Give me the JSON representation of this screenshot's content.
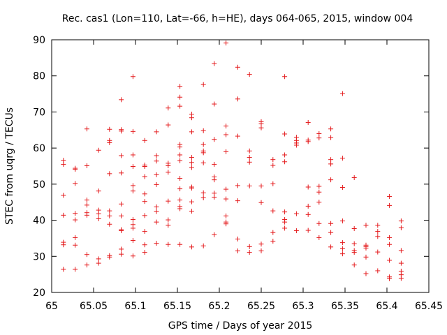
{
  "chart_data": {
    "type": "scatter",
    "title": "Rec. cas1 (Lon=110, Lat=-66, h=HE), days 064-065, 2015, window 004",
    "xlabel": "GPS time / Days of year 2015",
    "ylabel": "STEC from uqrg / TECUs",
    "xlim": [
      65,
      65.45
    ],
    "ylim": [
      20,
      90
    ],
    "xticks": [
      "65",
      "65.05",
      "65.1",
      "65.15",
      "65.2",
      "65.25",
      "65.3",
      "65.35",
      "65.4",
      "65.45"
    ],
    "yticks": [
      "20",
      "30",
      "40",
      "50",
      "60",
      "70",
      "80",
      "90"
    ],
    "marker": "plus",
    "marker_color": "#e41a1c",
    "series": [
      {
        "name": "STEC",
        "points": [
          [
            65.014,
            26.4
          ],
          [
            65.014,
            33.2
          ],
          [
            65.014,
            33.9
          ],
          [
            65.014,
            41.4
          ],
          [
            65.014,
            46.9
          ],
          [
            65.014,
            55.5
          ],
          [
            65.014,
            56.6
          ],
          [
            65.028,
            26.4
          ],
          [
            65.028,
            33.1
          ],
          [
            65.028,
            35.2
          ],
          [
            65.028,
            40.1
          ],
          [
            65.028,
            41.9
          ],
          [
            65.028,
            50.2
          ],
          [
            65.028,
            54.1
          ],
          [
            65.028,
            54.4
          ],
          [
            65.042,
            27.6
          ],
          [
            65.042,
            30.5
          ],
          [
            65.042,
            41.4
          ],
          [
            65.042,
            42.1
          ],
          [
            65.042,
            44.2
          ],
          [
            65.042,
            45.6
          ],
          [
            65.042,
            55.1
          ],
          [
            65.042,
            65.3
          ],
          [
            65.056,
            28.1
          ],
          [
            65.056,
            29.3
          ],
          [
            65.056,
            40.4
          ],
          [
            65.056,
            41.8
          ],
          [
            65.056,
            42.8
          ],
          [
            65.056,
            48.1
          ],
          [
            65.056,
            59.4
          ],
          [
            65.069,
            29.8
          ],
          [
            65.069,
            30.2
          ],
          [
            65.069,
            38.9
          ],
          [
            65.069,
            41.2
          ],
          [
            65.069,
            42.6
          ],
          [
            65.069,
            52.9
          ],
          [
            65.069,
            61.5
          ],
          [
            65.069,
            62.1
          ],
          [
            65.069,
            65.2
          ],
          [
            65.083,
            30.6
          ],
          [
            65.083,
            32.0
          ],
          [
            65.083,
            37.1
          ],
          [
            65.083,
            37.4
          ],
          [
            65.083,
            41.2
          ],
          [
            65.083,
            44.5
          ],
          [
            65.083,
            53.1
          ],
          [
            65.083,
            57.9
          ],
          [
            65.083,
            64.7
          ],
          [
            65.083,
            65.1
          ],
          [
            65.083,
            73.4
          ],
          [
            65.097,
            30.1
          ],
          [
            65.097,
            34.4
          ],
          [
            65.097,
            37.8
          ],
          [
            65.097,
            38.8
          ],
          [
            65.097,
            40.2
          ],
          [
            65.097,
            48.1
          ],
          [
            65.097,
            49.6
          ],
          [
            65.097,
            54.9
          ],
          [
            65.097,
            58.1
          ],
          [
            65.097,
            64.6
          ],
          [
            65.097,
            79.8
          ],
          [
            65.111,
            31.1
          ],
          [
            65.111,
            33.2
          ],
          [
            65.111,
            36.9
          ],
          [
            65.111,
            41.3
          ],
          [
            65.111,
            45.2
          ],
          [
            65.111,
            47.3
          ],
          [
            65.111,
            52.1
          ],
          [
            65.111,
            54.9
          ],
          [
            65.111,
            55.3
          ],
          [
            65.111,
            62.1
          ],
          [
            65.125,
            33.6
          ],
          [
            65.125,
            39.5
          ],
          [
            65.125,
            42.4
          ],
          [
            65.125,
            43.7
          ],
          [
            65.125,
            49.9
          ],
          [
            65.125,
            52.6
          ],
          [
            65.125,
            56.4
          ],
          [
            65.125,
            57.9
          ],
          [
            65.125,
            64.5
          ],
          [
            65.139,
            33.3
          ],
          [
            65.139,
            38.6
          ],
          [
            65.139,
            40.1
          ],
          [
            65.139,
            45.3
          ],
          [
            65.139,
            53.3
          ],
          [
            65.139,
            55.1
          ],
          [
            65.139,
            55.8
          ],
          [
            65.139,
            66.4
          ],
          [
            65.139,
            71.1
          ],
          [
            65.153,
            33.3
          ],
          [
            65.153,
            43.2
          ],
          [
            65.153,
            43.8
          ],
          [
            65.153,
            45.6
          ],
          [
            65.153,
            48.7
          ],
          [
            65.153,
            51.6
          ],
          [
            65.153,
            56.5
          ],
          [
            65.153,
            58.1
          ],
          [
            65.153,
            60.3
          ],
          [
            65.153,
            61.0
          ],
          [
            65.153,
            71.6
          ],
          [
            65.153,
            74.1
          ],
          [
            65.153,
            77.1
          ],
          [
            65.167,
            32.6
          ],
          [
            65.167,
            42.5
          ],
          [
            65.167,
            45.1
          ],
          [
            65.167,
            48.9
          ],
          [
            65.167,
            49.2
          ],
          [
            65.167,
            54.6
          ],
          [
            65.167,
            56.0
          ],
          [
            65.167,
            57.4
          ],
          [
            65.167,
            64.5
          ],
          [
            65.167,
            68.4
          ],
          [
            65.167,
            69.4
          ],
          [
            65.181,
            32.9
          ],
          [
            65.181,
            46.2
          ],
          [
            65.181,
            47.6
          ],
          [
            65.181,
            55.9
          ],
          [
            65.181,
            58.7
          ],
          [
            65.181,
            59.2
          ],
          [
            65.181,
            61.0
          ],
          [
            65.181,
            64.8
          ],
          [
            65.181,
            77.6
          ],
          [
            65.194,
            36.0
          ],
          [
            65.194,
            46.4
          ],
          [
            65.194,
            47.5
          ],
          [
            65.194,
            51.2
          ],
          [
            65.194,
            52.0
          ],
          [
            65.194,
            55.5
          ],
          [
            65.194,
            62.4
          ],
          [
            65.194,
            72.2
          ],
          [
            65.194,
            83.4
          ],
          [
            65.208,
            39.0
          ],
          [
            65.208,
            39.5
          ],
          [
            65.208,
            41.2
          ],
          [
            65.208,
            45.9
          ],
          [
            65.208,
            48.6
          ],
          [
            65.208,
            59.0
          ],
          [
            65.208,
            63.7
          ],
          [
            65.208,
            66.1
          ],
          [
            65.208,
            89.1
          ],
          [
            65.222,
            31.5
          ],
          [
            65.222,
            34.8
          ],
          [
            65.222,
            45.4
          ],
          [
            65.222,
            49.6
          ],
          [
            65.222,
            63.3
          ],
          [
            65.222,
            73.6
          ],
          [
            65.222,
            82.4
          ],
          [
            65.236,
            31.1
          ],
          [
            65.236,
            32.7
          ],
          [
            65.236,
            49.5
          ],
          [
            65.236,
            56.1
          ],
          [
            65.236,
            57.4
          ],
          [
            65.236,
            59.2
          ],
          [
            65.236,
            80.4
          ],
          [
            65.25,
            31.5
          ],
          [
            65.25,
            33.4
          ],
          [
            65.25,
            44.9
          ],
          [
            65.25,
            49.5
          ],
          [
            65.25,
            65.6
          ],
          [
            65.25,
            66.7
          ],
          [
            65.25,
            67.3
          ],
          [
            65.264,
            34.2
          ],
          [
            65.264,
            36.6
          ],
          [
            65.264,
            42.6
          ],
          [
            65.264,
            50.1
          ],
          [
            65.264,
            55.2
          ],
          [
            65.264,
            56.8
          ],
          [
            65.278,
            37.8
          ],
          [
            65.278,
            39.5
          ],
          [
            65.278,
            40.2
          ],
          [
            65.278,
            42.3
          ],
          [
            65.278,
            56.2
          ],
          [
            65.278,
            58.1
          ],
          [
            65.278,
            63.9
          ],
          [
            65.278,
            79.8
          ],
          [
            65.292,
            37.1
          ],
          [
            65.292,
            41.8
          ],
          [
            65.292,
            60.8
          ],
          [
            65.292,
            61.4
          ],
          [
            65.292,
            62.1
          ],
          [
            65.292,
            63.0
          ],
          [
            65.306,
            37.2
          ],
          [
            65.306,
            41.6
          ],
          [
            65.306,
            43.9
          ],
          [
            65.306,
            49.2
          ],
          [
            65.306,
            61.8
          ],
          [
            65.306,
            62.2
          ],
          [
            65.306,
            67.1
          ],
          [
            65.319,
            35.2
          ],
          [
            65.319,
            39.1
          ],
          [
            65.319,
            45.0
          ],
          [
            65.319,
            47.8
          ],
          [
            65.319,
            49.4
          ],
          [
            65.319,
            62.8
          ],
          [
            65.319,
            64.0
          ],
          [
            65.333,
            32.6
          ],
          [
            65.333,
            36.6
          ],
          [
            65.333,
            39.1
          ],
          [
            65.333,
            51.2
          ],
          [
            65.333,
            55.6
          ],
          [
            65.333,
            56.8
          ],
          [
            65.333,
            62.9
          ],
          [
            65.333,
            65.3
          ],
          [
            65.347,
            30.7
          ],
          [
            65.347,
            32.1
          ],
          [
            65.347,
            33.8
          ],
          [
            65.347,
            39.8
          ],
          [
            65.347,
            49.1
          ],
          [
            65.347,
            57.2
          ],
          [
            65.347,
            75.1
          ],
          [
            65.361,
            27.6
          ],
          [
            65.361,
            31.1
          ],
          [
            65.361,
            31.6
          ],
          [
            65.361,
            33.5
          ],
          [
            65.361,
            37.7
          ],
          [
            65.361,
            51.8
          ],
          [
            65.375,
            25.2
          ],
          [
            65.375,
            29.8
          ],
          [
            65.375,
            32.3
          ],
          [
            65.375,
            32.7
          ],
          [
            65.375,
            33.1
          ],
          [
            65.375,
            38.6
          ],
          [
            65.389,
            26.0
          ],
          [
            65.389,
            31.2
          ],
          [
            65.389,
            35.5
          ],
          [
            65.389,
            36.9
          ],
          [
            65.389,
            38.6
          ],
          [
            65.403,
            23.8
          ],
          [
            65.403,
            24.3
          ],
          [
            65.403,
            28.9
          ],
          [
            65.403,
            33.3
          ],
          [
            65.403,
            35.2
          ],
          [
            65.403,
            44.1
          ],
          [
            65.403,
            46.6
          ],
          [
            65.417,
            23.9
          ],
          [
            65.417,
            24.9
          ],
          [
            65.417,
            25.9
          ],
          [
            65.417,
            28.1
          ],
          [
            65.417,
            31.6
          ],
          [
            65.417,
            37.9
          ],
          [
            65.417,
            39.8
          ]
        ]
      }
    ]
  }
}
